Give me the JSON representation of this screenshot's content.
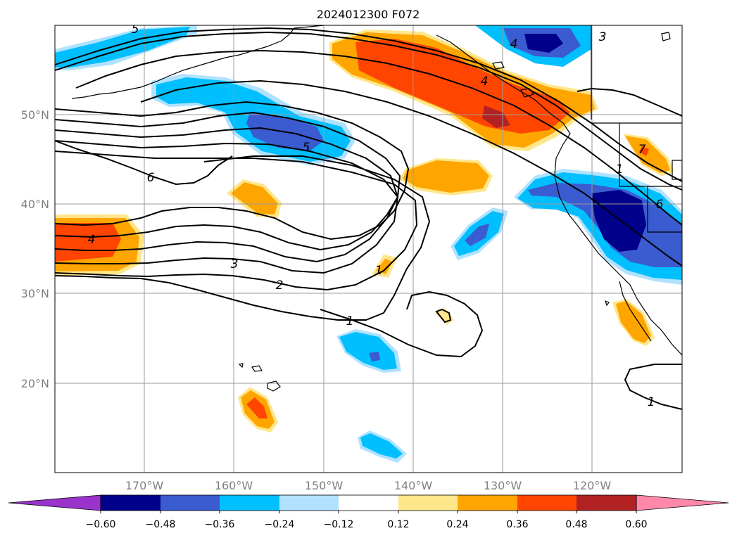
{
  "title": "2024012300 F072",
  "lat_labels": [
    "50°N",
    "40°N",
    "30°N",
    "20°N"
  ],
  "lon_labels": [
    "170°W",
    "160°W",
    "150°W",
    "140°W",
    "130°W",
    "120°W"
  ],
  "colorbar": {
    "ticks": [
      "−0.60",
      "−0.48",
      "−0.36",
      "−0.24",
      "−0.12",
      "0.12",
      "0.24",
      "0.36",
      "0.48",
      "0.60"
    ],
    "colors": [
      "#9933cc",
      "#00008b",
      "#3b5bd0",
      "#00bfff",
      "#b0e2ff",
      "#ffffff",
      "#ffe68a",
      "#ffa500",
      "#ff4500",
      "#b22222",
      "#ff88aa"
    ]
  },
  "contour_labels": [
    "1",
    "1",
    "2",
    "3",
    "4",
    "4",
    "5",
    "5",
    "6",
    "6",
    "3",
    "4",
    "1",
    "7",
    "1"
  ]
}
